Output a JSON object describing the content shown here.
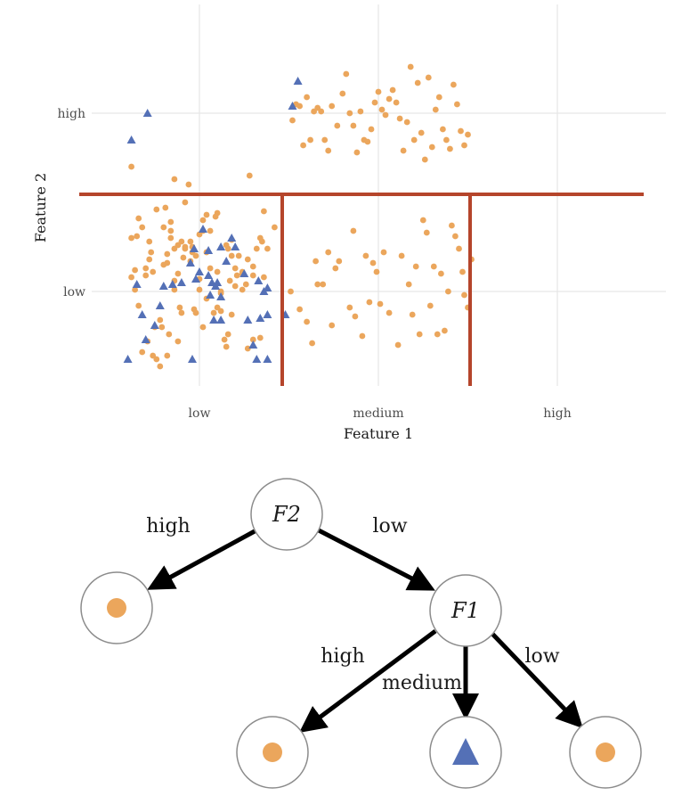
{
  "colors": {
    "class_circle": "#eba65c",
    "class_triangle": "#5470b6",
    "split_line": "#b5452b",
    "grid": "#e6e6e6"
  },
  "chart_data": {
    "type": "scatter",
    "xlabel": "Feature 1",
    "ylabel": "Feature 2",
    "x_categories": [
      "low",
      "medium",
      "high"
    ],
    "y_categories": [
      "low",
      "high"
    ],
    "grid": true,
    "splits": [
      {
        "orientation": "horizontal",
        "between_y": [
          "low",
          "high"
        ],
        "x_range": [
          "low",
          "high"
        ]
      },
      {
        "orientation": "vertical",
        "between_x": [
          "low",
          "medium"
        ],
        "y_range": [
          "low",
          "low"
        ]
      },
      {
        "orientation": "vertical",
        "between_x": [
          "medium",
          "high"
        ],
        "y_range": [
          "low",
          "low"
        ]
      }
    ],
    "series": [
      {
        "shape": "circle",
        "points": [
          [
            -0.38,
            0.7
          ],
          [
            -0.34,
            0.41
          ],
          [
            -0.3,
            0.09
          ],
          [
            -0.28,
            0.18
          ],
          [
            -0.25,
            -0.2
          ],
          [
            -0.22,
            -0.42
          ],
          [
            -0.2,
            0.36
          ],
          [
            -0.19,
            0.47
          ],
          [
            -0.18,
            0.16
          ],
          [
            -0.17,
            -0.24
          ],
          [
            -0.16,
            0.34
          ],
          [
            -0.14,
            0.63
          ],
          [
            -0.12,
            0.1
          ],
          [
            -0.11,
            -0.09
          ],
          [
            -0.09,
            0.19
          ],
          [
            -0.08,
            0.25
          ],
          [
            -0.06,
            0.6
          ],
          [
            -0.05,
            0.28
          ],
          [
            -0.04,
            0.22
          ],
          [
            -0.02,
            0.2
          ],
          [
            0.0,
            0.07
          ],
          [
            0.02,
            0.34
          ],
          [
            0.04,
            0.43
          ],
          [
            0.1,
            0.44
          ],
          [
            0.12,
            -0.11
          ],
          [
            0.15,
            -0.31
          ],
          [
            0.17,
            0.06
          ],
          [
            0.18,
            -0.13
          ],
          [
            0.21,
            0.09
          ],
          [
            0.24,
            0.1
          ],
          [
            0.27,
            -0.32
          ],
          [
            0.3,
            0.14
          ],
          [
            0.34,
            -0.26
          ],
          [
            0.36,
            0.45
          ],
          [
            0.38,
            0.24
          ],
          [
            0.42,
            0.36
          ],
          [
            -0.38,
            0.3
          ],
          [
            -0.36,
            0.01
          ],
          [
            -0.34,
            -0.08
          ],
          [
            -0.32,
            -0.34
          ],
          [
            -0.29,
            -0.28
          ],
          [
            -0.26,
            -0.36
          ],
          [
            -0.24,
            -0.38
          ],
          [
            -0.21,
            -0.2
          ],
          [
            -0.18,
            -0.36
          ],
          [
            -0.16,
            0.3
          ],
          [
            -0.14,
            0.01
          ],
          [
            -0.1,
            -0.12
          ],
          [
            -0.08,
            0.24
          ],
          [
            -0.05,
            0.17
          ],
          [
            -0.03,
            -0.1
          ],
          [
            0.0,
            0.32
          ],
          [
            0.02,
            -0.2
          ],
          [
            0.04,
            0.22
          ],
          [
            0.06,
            0.13
          ],
          [
            0.08,
            -0.12
          ],
          [
            0.1,
            0.11
          ],
          [
            0.12,
            -0.01
          ],
          [
            0.14,
            -0.27
          ],
          [
            0.16,
            0.24
          ],
          [
            0.18,
            0.29
          ],
          [
            0.2,
            0.03
          ],
          [
            0.24,
            0.11
          ],
          [
            0.27,
            0.18
          ],
          [
            0.3,
            -0.27
          ],
          [
            0.34,
            0.3
          ],
          [
            0.36,
            0.08
          ],
          [
            0.26,
            0.04
          ],
          [
            -0.38,
            0.08
          ],
          [
            -0.36,
            0.12
          ],
          [
            -0.35,
            0.31
          ],
          [
            -0.32,
            0.36
          ],
          [
            -0.3,
            0.13
          ],
          [
            -0.28,
            0.28
          ],
          [
            -0.26,
            0.11
          ],
          [
            -0.24,
            0.46
          ],
          [
            -0.22,
            -0.16
          ],
          [
            -0.2,
            0.15
          ],
          [
            -0.18,
            0.21
          ],
          [
            -0.16,
            0.39
          ],
          [
            -0.14,
            0.06
          ],
          [
            -0.12,
            0.26
          ],
          [
            -0.1,
            0.28
          ],
          [
            -0.08,
            0.5
          ],
          [
            -0.04,
            0.25
          ],
          [
            -0.02,
            -0.12
          ],
          [
            0.0,
            0.01
          ],
          [
            0.02,
            0.4
          ],
          [
            0.04,
            -0.04
          ],
          [
            0.06,
            0.34
          ],
          [
            0.09,
            0.42
          ],
          [
            0.12,
            0.0
          ],
          [
            0.15,
            0.26
          ],
          [
            0.18,
            0.2
          ],
          [
            0.2,
            0.13
          ],
          [
            0.22,
            0.2
          ],
          [
            0.24,
            0.01
          ],
          [
            0.28,
            0.65
          ],
          [
            0.32,
            0.24
          ],
          [
            0.35,
            0.28
          ],
          [
            -0.14,
            0.24
          ],
          [
            0.16,
            -0.24
          ],
          [
            -0.12,
            -0.28
          ],
          [
            0.3,
            0.09
          ],
          [
            -0.27,
            0.22
          ],
          [
            0.1,
            -0.09
          ],
          [
            0.51,
            0.0
          ],
          [
            0.56,
            -0.1
          ],
          [
            0.6,
            -0.17
          ],
          [
            0.63,
            -0.29
          ],
          [
            0.65,
            0.17
          ],
          [
            0.66,
            0.04
          ],
          [
            0.69,
            0.04
          ],
          [
            0.72,
            0.22
          ],
          [
            0.74,
            -0.19
          ],
          [
            0.76,
            0.13
          ],
          [
            0.78,
            0.17
          ],
          [
            0.84,
            -0.09
          ],
          [
            0.86,
            0.34
          ],
          [
            0.87,
            -0.14
          ],
          [
            0.91,
            -0.25
          ],
          [
            0.93,
            0.2
          ],
          [
            0.95,
            -0.06
          ],
          [
            0.97,
            0.16
          ],
          [
            0.99,
            0.11
          ],
          [
            1.01,
            -0.07
          ],
          [
            1.03,
            0.22
          ],
          [
            1.06,
            -0.12
          ],
          [
            1.11,
            -0.3
          ],
          [
            1.13,
            0.2
          ],
          [
            1.17,
            0.04
          ],
          [
            1.19,
            -0.13
          ],
          [
            1.21,
            0.14
          ],
          [
            1.23,
            -0.24
          ],
          [
            1.25,
            0.4
          ],
          [
            1.27,
            0.33
          ],
          [
            1.29,
            -0.08
          ],
          [
            1.31,
            0.14
          ],
          [
            1.33,
            -0.24
          ],
          [
            1.35,
            0.1
          ],
          [
            1.37,
            -0.22
          ],
          [
            1.39,
            0.0
          ],
          [
            1.41,
            0.37
          ],
          [
            1.43,
            0.31
          ],
          [
            1.45,
            0.24
          ],
          [
            1.47,
            0.11
          ],
          [
            1.48,
            -0.02
          ],
          [
            1.5,
            -0.09
          ],
          [
            1.52,
            0.18
          ],
          [
            0.52,
            0.96
          ],
          [
            0.54,
            1.05
          ],
          [
            0.56,
            1.04
          ],
          [
            0.58,
            0.82
          ],
          [
            0.6,
            1.09
          ],
          [
            0.62,
            0.85
          ],
          [
            0.64,
            1.01
          ],
          [
            0.66,
            1.03
          ],
          [
            0.68,
            1.01
          ],
          [
            0.7,
            0.85
          ],
          [
            0.72,
            0.79
          ],
          [
            0.74,
            1.04
          ],
          [
            0.77,
            0.93
          ],
          [
            0.8,
            1.11
          ],
          [
            0.82,
            1.22
          ],
          [
            0.84,
            1.0
          ],
          [
            0.86,
            0.93
          ],
          [
            0.88,
            0.78
          ],
          [
            0.9,
            1.01
          ],
          [
            0.92,
            0.85
          ],
          [
            0.94,
            0.84
          ],
          [
            0.96,
            0.91
          ],
          [
            0.98,
            1.06
          ],
          [
            1.0,
            1.12
          ],
          [
            1.02,
            1.02
          ],
          [
            1.04,
            0.99
          ],
          [
            1.06,
            1.08
          ],
          [
            1.08,
            1.13
          ],
          [
            1.1,
            1.06
          ],
          [
            1.12,
            0.97
          ],
          [
            1.14,
            0.79
          ],
          [
            1.16,
            0.95
          ],
          [
            1.18,
            1.26
          ],
          [
            1.2,
            0.85
          ],
          [
            1.22,
            1.17
          ],
          [
            1.24,
            0.89
          ],
          [
            1.26,
            0.74
          ],
          [
            1.28,
            1.2
          ],
          [
            1.3,
            0.81
          ],
          [
            1.32,
            1.02
          ],
          [
            1.34,
            1.09
          ],
          [
            1.36,
            0.91
          ],
          [
            1.38,
            0.85
          ],
          [
            1.4,
            0.8
          ],
          [
            1.42,
            1.16
          ],
          [
            1.44,
            1.05
          ],
          [
            1.46,
            0.9
          ],
          [
            1.48,
            0.82
          ],
          [
            1.5,
            0.88
          ]
        ]
      },
      {
        "shape": "triangle",
        "points": [
          [
            -0.38,
            0.85
          ],
          [
            -0.29,
            1.0
          ],
          [
            0.52,
            1.04
          ],
          [
            0.55,
            1.18
          ],
          [
            0.48,
            -0.13
          ],
          [
            0.38,
            -0.13
          ],
          [
            0.33,
            0.06
          ]
        ]
      },
      {
        "shape": "triangle",
        "points": [
          [
            -0.4,
            -0.38
          ],
          [
            -0.35,
            0.04
          ],
          [
            -0.3,
            -0.27
          ],
          [
            -0.25,
            -0.19
          ],
          [
            -0.22,
            -0.08
          ],
          [
            -0.2,
            0.03
          ],
          [
            -0.15,
            0.04
          ],
          [
            -0.1,
            0.05
          ],
          [
            -0.05,
            0.16
          ],
          [
            -0.03,
            0.24
          ],
          [
            -0.02,
            0.07
          ],
          [
            0.0,
            0.11
          ],
          [
            0.02,
            0.35
          ],
          [
            0.05,
            0.23
          ],
          [
            0.07,
            0.05
          ],
          [
            0.05,
            0.09
          ],
          [
            0.08,
            -0.16
          ],
          [
            0.09,
            0.03
          ],
          [
            0.1,
            0.05
          ],
          [
            0.12,
            -0.03
          ],
          [
            0.15,
            0.17
          ],
          [
            0.18,
            0.3
          ],
          [
            0.2,
            0.25
          ],
          [
            0.25,
            0.1
          ],
          [
            0.27,
            -0.16
          ],
          [
            0.3,
            -0.3
          ],
          [
            0.32,
            -0.38
          ],
          [
            0.34,
            -0.15
          ],
          [
            0.36,
            0.0
          ],
          [
            0.38,
            0.02
          ],
          [
            0.38,
            -0.38
          ],
          [
            -0.04,
            -0.38
          ],
          [
            0.12,
            -0.16
          ],
          [
            -0.32,
            -0.13
          ],
          [
            0.06,
            -0.02
          ],
          [
            0.12,
            0.25
          ]
        ]
      }
    ]
  },
  "tree": {
    "root": {
      "label": "F2"
    },
    "child": {
      "label": "F1"
    },
    "edges": {
      "root_left": "high",
      "root_right": "low",
      "child_left": "high",
      "child_mid": "medium",
      "child_right": "low"
    },
    "leaves": [
      {
        "class": "circle"
      },
      {
        "class": "circle"
      },
      {
        "class": "triangle"
      },
      {
        "class": "circle"
      }
    ]
  }
}
